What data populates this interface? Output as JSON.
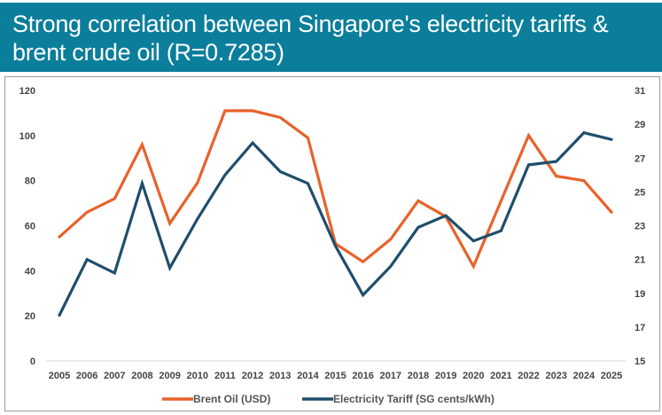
{
  "header": {
    "title": "Strong correlation between Singapore's electricity tariffs & brent crude oil (R=0.7285)"
  },
  "colors": {
    "header_bg": "#0b7e9b",
    "brent": "#e8622a",
    "tariff": "#1f4e6b"
  },
  "chart_data": {
    "type": "line",
    "title": "Strong correlation between Singapore's electricity tariffs & brent crude oil (R=0.7285)",
    "xlabel": "",
    "ylabel": "Brent Oil (USD)",
    "y2label": "Electricity Tariff (SG cents/kWh)",
    "x": [
      "2005",
      "2006",
      "2007",
      "2008",
      "2009",
      "2010",
      "2011",
      "2012",
      "2013",
      "2014",
      "2015",
      "2016",
      "2017",
      "2018",
      "2019",
      "2020",
      "2021",
      "2022",
      "2023",
      "2024",
      "2025"
    ],
    "ylim": [
      0,
      120
    ],
    "yticks": [
      0,
      20,
      40,
      60,
      80,
      100,
      120
    ],
    "y2lim": [
      15,
      31
    ],
    "y2ticks": [
      15,
      17,
      19,
      21,
      23,
      25,
      27,
      29,
      31
    ],
    "grid": false,
    "legend_position": "bottom",
    "series": [
      {
        "name": "Brent Oil (USD)",
        "axis": "left",
        "values": [
          55,
          66,
          72,
          96,
          61,
          79,
          111,
          111,
          108,
          99,
          52,
          44,
          54,
          71,
          64,
          42,
          71,
          100,
          82,
          80,
          66
        ]
      },
      {
        "name": "Electricity Tariff (SG cents/kWh)",
        "axis": "right",
        "values": [
          17.7,
          21.0,
          20.2,
          25.5,
          20.5,
          23.4,
          26.0,
          27.9,
          26.2,
          25.5,
          21.8,
          18.9,
          20.6,
          22.9,
          23.6,
          22.1,
          22.7,
          26.6,
          26.8,
          28.5,
          28.1
        ]
      }
    ]
  }
}
